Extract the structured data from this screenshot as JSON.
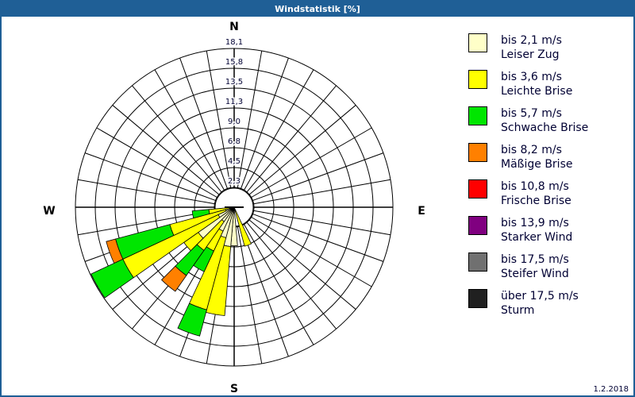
{
  "title": "Windstatistik [%]",
  "date": "1.2.2018",
  "chart_data": {
    "type": "windrose",
    "title": "Windstatistik [%]",
    "unit": "%",
    "rmax": 18.1,
    "ring_labels": [
      "2,3",
      "4,5",
      "6,8",
      "9,0",
      "11,3",
      "13,5",
      "15,8",
      "18,1"
    ],
    "compass": {
      "N": "N",
      "E": "E",
      "S": "S",
      "W": "W"
    },
    "sector_width_deg": 10,
    "classes": [
      {
        "range": "bis 2,1 m/s",
        "name": "Leiser Zug",
        "color": "#ffffc8"
      },
      {
        "range": "bis 3,6 m/s",
        "name": "Leichte Brise",
        "color": "#ffff00"
      },
      {
        "range": "bis 5,7 m/s",
        "name": "Schwache Brise",
        "color": "#00e600"
      },
      {
        "range": "bis 8,2 m/s",
        "name": "Mäßige Brise",
        "color": "#ff8000"
      },
      {
        "range": "bis 10,8 m/s",
        "name": "Frische Brise",
        "color": "#ff0000"
      },
      {
        "range": "bis 13,9 m/s",
        "name": "Starker Wind",
        "color": "#800080"
      },
      {
        "range": "bis 17,5 m/s",
        "name": "Steifer Wind",
        "color": "#707070"
      },
      {
        "range": "über 17,5 m/s",
        "name": "Sturm",
        "color": "#202020"
      }
    ],
    "sectors": [
      {
        "dir": 160,
        "values": [
          0,
          4.6,
          0,
          0
        ]
      },
      {
        "dir": 180,
        "values": [
          4.4,
          0,
          0,
          0
        ]
      },
      {
        "dir": 190,
        "values": [
          4.5,
          7.9,
          0,
          0
        ]
      },
      {
        "dir": 200,
        "values": [
          3.6,
          8.5,
          3.1,
          0
        ]
      },
      {
        "dir": 210,
        "values": [
          3.0,
          2.5,
          2.6,
          0
        ]
      },
      {
        "dir": 220,
        "values": [
          2.0,
          4.0,
          3.5,
          2.2
        ]
      },
      {
        "dir": 230,
        "values": [
          5.0,
          2.0,
          0,
          0
        ]
      },
      {
        "dir": 240,
        "values": [
          2.0,
          12.0,
          4.0,
          0
        ]
      },
      {
        "dir": 250,
        "values": [
          1.0,
          6.6,
          6.4,
          1.1
        ]
      },
      {
        "dir": 260,
        "values": [
          0.5,
          2.4,
          1.9,
          0
        ]
      }
    ]
  }
}
